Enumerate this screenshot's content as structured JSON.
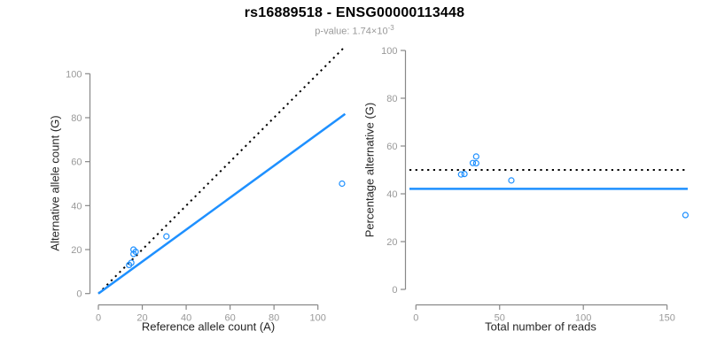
{
  "header": {
    "title": "rs16889518 - ENSG00000113448",
    "subtitle_prefix": "p-value: 1.74×10",
    "subtitle_exponent": "-3"
  },
  "colors": {
    "accent_blue": "#1E90FF",
    "identity_black": "#000000",
    "axis_gray": "#888888",
    "tick_label_gray": "#999999",
    "label_dark": "#262626"
  },
  "chart_data": [
    {
      "type": "scatter",
      "panel": "allele-counts",
      "xlabel": "Reference allele count (A)",
      "ylabel": "Alternative allele count (G)",
      "xticks": [
        0,
        20,
        40,
        60,
        80,
        100
      ],
      "yticks": [
        0,
        20,
        40,
        60,
        80,
        100
      ],
      "xlim": [
        0,
        113
      ],
      "ylim": [
        0,
        112
      ],
      "grid": false,
      "legend": "none",
      "points": {
        "x": [
          14,
          15,
          16,
          16,
          17,
          31,
          111
        ],
        "y": [
          13,
          14,
          18,
          20,
          19,
          26,
          50
        ]
      },
      "lines": [
        {
          "name": "identity-line",
          "style": "dotted",
          "color": "#000000",
          "x1": 0,
          "y1": 0,
          "x2": 112,
          "y2": 112
        },
        {
          "name": "fit-line",
          "style": "solid",
          "color": "#1E90FF",
          "x1": 0,
          "y1": 0,
          "x2": 112.4,
          "y2": 81.7
        }
      ]
    },
    {
      "type": "scatter",
      "panel": "percentage-alternative",
      "xlabel": "Total number of reads",
      "ylabel": "Percentage alternative (G)",
      "xticks": [
        0,
        50,
        100,
        150
      ],
      "yticks": [
        0,
        20,
        40,
        60,
        80,
        100
      ],
      "xlim": [
        0,
        163
      ],
      "ylim": [
        0,
        100
      ],
      "grid": false,
      "legend": "none",
      "points": {
        "x": [
          27,
          29,
          34,
          36,
          36,
          57,
          161
        ],
        "y": [
          48.1,
          48.3,
          52.9,
          55.6,
          52.8,
          45.6,
          31.1
        ]
      },
      "lines": [
        {
          "name": "fifty-percent-line",
          "style": "dotted",
          "color": "#000000",
          "y": 50
        },
        {
          "name": "mean-percentage-line",
          "style": "solid",
          "color": "#1E90FF",
          "y": 42.1
        }
      ]
    }
  ]
}
